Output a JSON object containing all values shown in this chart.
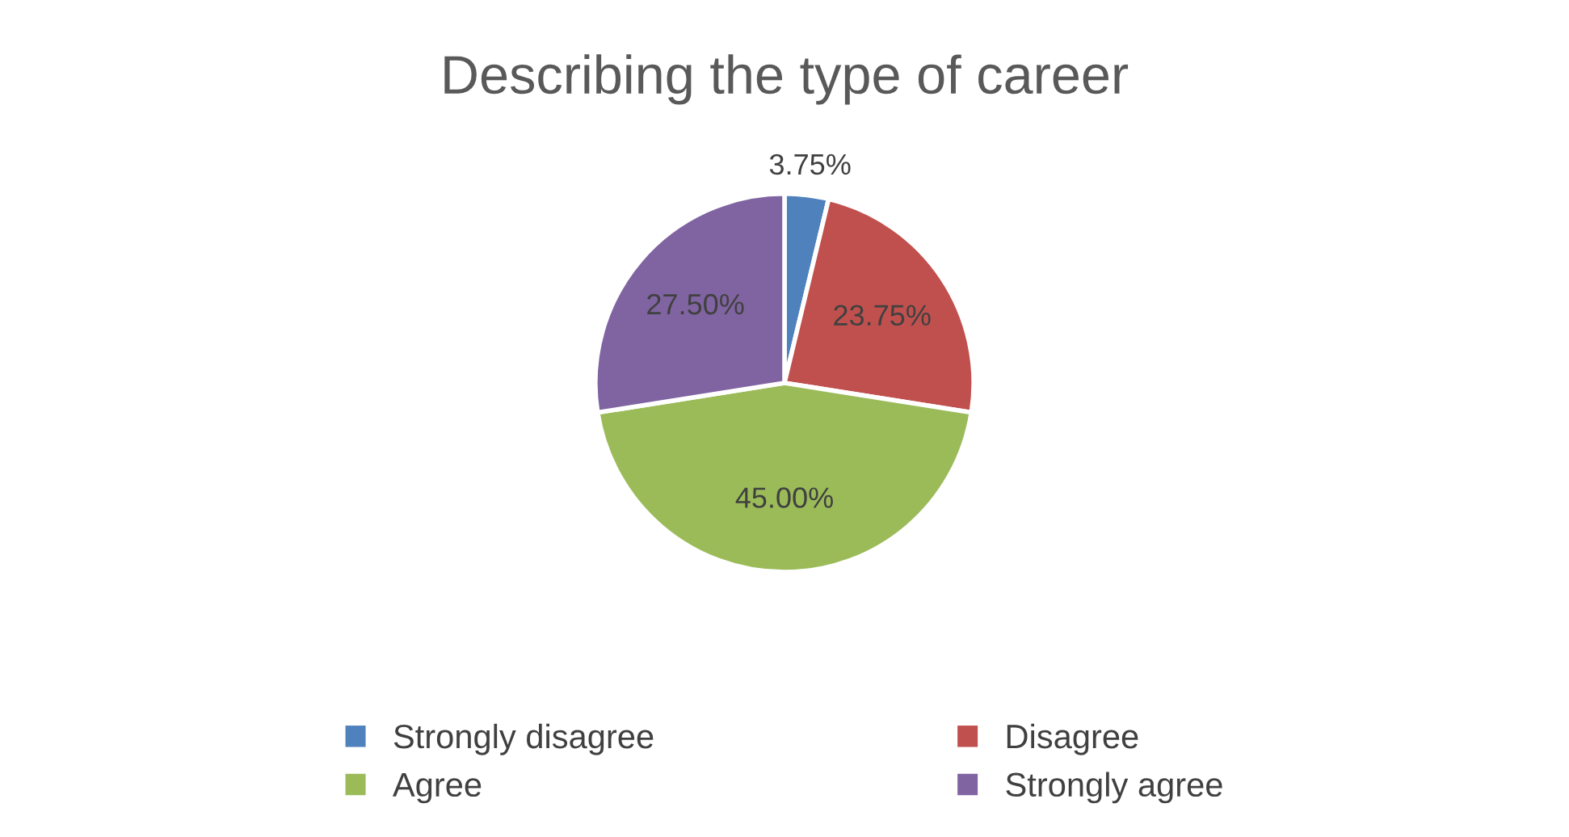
{
  "chart_data": {
    "type": "pie",
    "title": "Describing the type of career",
    "categories": [
      "Strongly disagree",
      "Disagree",
      "Agree",
      "Strongly agree"
    ],
    "values": [
      3.75,
      23.75,
      45.0,
      27.5
    ],
    "colors": [
      "#4f81bd",
      "#c0504d",
      "#9bbb59",
      "#8064a2"
    ],
    "value_labels": [
      "3.75%",
      "23.75%",
      "45.00%",
      "27.50%"
    ],
    "legend": "bottom"
  }
}
